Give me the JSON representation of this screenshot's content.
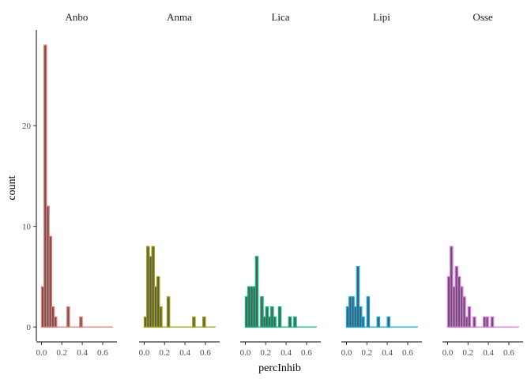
{
  "chart_data": {
    "type": "bar",
    "subtype": "faceted-histogram",
    "xlabel": "percInhib",
    "ylabel": "count",
    "xlim": [
      -0.05,
      0.74
    ],
    "ylim": [
      -1.4,
      29.5
    ],
    "bin_width": 0.025,
    "x_ticks": [
      0.0,
      0.2,
      0.4,
      0.6
    ],
    "x_tick_labels": [
      "0.0",
      "0.2",
      "0.4",
      "0.6"
    ],
    "y_ticks": [
      0,
      10,
      20
    ],
    "y_tick_labels": [
      "0",
      "10",
      "20"
    ],
    "bar_fill": "#595959",
    "grid": false,
    "legend": "none",
    "panels": [
      {
        "name": "Anbo",
        "color": "#F8766D",
        "bin_starts": [
          0.0,
          0.025,
          0.05,
          0.075,
          0.1,
          0.125,
          0.15,
          0.175,
          0.2,
          0.225,
          0.25,
          0.275,
          0.3,
          0.325,
          0.35,
          0.375,
          0.4,
          0.425,
          0.45,
          0.475,
          0.5,
          0.525,
          0.55,
          0.575,
          0.6,
          0.625,
          0.65,
          0.675
        ],
        "counts": [
          4,
          28,
          12,
          9,
          2,
          1,
          0,
          0,
          0,
          0,
          2,
          0,
          0,
          0,
          0,
          1,
          0,
          0,
          0,
          0,
          0,
          0,
          0,
          0,
          0,
          0,
          0,
          0
        ]
      },
      {
        "name": "Anma",
        "color": "#A3A500",
        "bin_starts": [
          0.0,
          0.025,
          0.05,
          0.075,
          0.1,
          0.125,
          0.15,
          0.175,
          0.2,
          0.225,
          0.25,
          0.275,
          0.3,
          0.325,
          0.35,
          0.375,
          0.4,
          0.425,
          0.45,
          0.475,
          0.5,
          0.525,
          0.55,
          0.575,
          0.6,
          0.625,
          0.65,
          0.675
        ],
        "counts": [
          1,
          8,
          7,
          8,
          4,
          5,
          2,
          0,
          0,
          3,
          0,
          0,
          0,
          0,
          0,
          0,
          0,
          0,
          0,
          1,
          0,
          0,
          0,
          1,
          0,
          0,
          0,
          0
        ]
      },
      {
        "name": "Lica",
        "color": "#00BF7D",
        "bin_starts": [
          0.0,
          0.025,
          0.05,
          0.075,
          0.1,
          0.125,
          0.15,
          0.175,
          0.2,
          0.225,
          0.25,
          0.275,
          0.3,
          0.325,
          0.35,
          0.375,
          0.4,
          0.425,
          0.45,
          0.475,
          0.5,
          0.525,
          0.55,
          0.575,
          0.6,
          0.625,
          0.65,
          0.675
        ],
        "counts": [
          3,
          4,
          4,
          4,
          7,
          0,
          3,
          1,
          2,
          1,
          2,
          1,
          0,
          2,
          0,
          0,
          0,
          1,
          0,
          1,
          0,
          0,
          0,
          0,
          0,
          0,
          0,
          0
        ]
      },
      {
        "name": "Lipi",
        "color": "#00B0F6",
        "bin_starts": [
          0.0,
          0.025,
          0.05,
          0.075,
          0.1,
          0.125,
          0.15,
          0.175,
          0.2,
          0.225,
          0.25,
          0.275,
          0.3,
          0.325,
          0.35,
          0.375,
          0.4,
          0.425,
          0.45,
          0.475,
          0.5,
          0.525,
          0.55,
          0.575,
          0.6,
          0.625,
          0.65,
          0.675
        ],
        "counts": [
          2,
          3,
          3,
          2,
          6,
          2,
          1,
          0,
          3,
          0,
          0,
          0,
          1,
          0,
          0,
          0,
          1,
          0,
          0,
          0,
          0,
          0,
          0,
          0,
          0,
          0,
          0,
          0
        ]
      },
      {
        "name": "Osse",
        "color": "#E76BF3",
        "bin_starts": [
          0.0,
          0.025,
          0.05,
          0.075,
          0.1,
          0.125,
          0.15,
          0.175,
          0.2,
          0.225,
          0.25,
          0.275,
          0.3,
          0.325,
          0.35,
          0.375,
          0.4,
          0.425,
          0.45,
          0.475,
          0.5,
          0.525,
          0.55,
          0.575,
          0.6,
          0.625,
          0.65,
          0.675
        ],
        "counts": [
          5,
          8,
          4,
          6,
          5,
          4,
          3,
          1,
          2,
          0,
          1,
          0,
          0,
          0,
          1,
          1,
          0,
          1,
          0,
          0,
          0,
          0,
          0,
          0,
          0,
          0,
          0,
          0
        ]
      }
    ]
  }
}
